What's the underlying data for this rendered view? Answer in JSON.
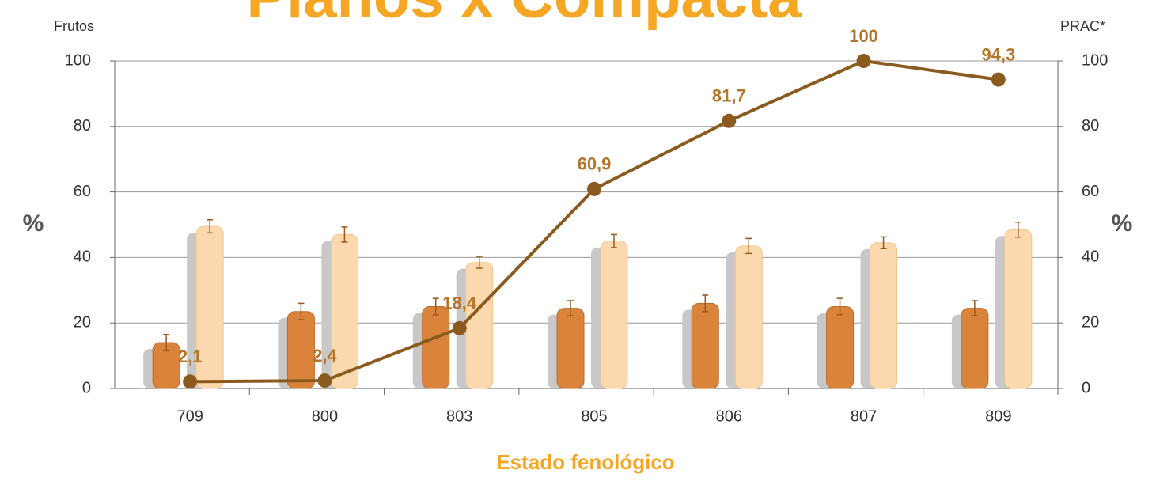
{
  "chart_data": {
    "type": "bar-line",
    "title": "Planos x Compacta",
    "y_label_top": "Frutos",
    "y2_label_top": "PRAC*",
    "y_label": "%",
    "y2_label": "%",
    "x_label": "Estado fenológico",
    "categories": [
      "709",
      "800",
      "803",
      "805",
      "806",
      "807",
      "809"
    ],
    "series": [
      {
        "color": "#d9843a",
        "values": [
          14,
          23.5,
          25,
          24.5,
          26,
          25,
          24.5
        ],
        "errors": [
          2.5,
          2.5,
          2.5,
          2.3,
          2.5,
          2.5,
          2.3
        ]
      },
      {
        "color": "#fbd8ae",
        "values": [
          49.5,
          47,
          38.5,
          45,
          43.5,
          44.5,
          48.5
        ],
        "errors": [
          2,
          2.3,
          1.8,
          2,
          2.3,
          1.8,
          2.3
        ]
      },
      {
        "color": "#8b5a1e",
        "axis": "y2",
        "values": [
          2.1,
          2.4,
          18.4,
          60.9,
          81.7,
          100,
          94.3
        ],
        "value_labels": [
          "2,1",
          "2,4",
          "18,4",
          "60,9",
          "81,7",
          "100",
          "94,3"
        ]
      }
    ],
    "ylim": [
      0,
      100
    ],
    "yticks": [
      0,
      20,
      40,
      60,
      80,
      100
    ],
    "y2lim": [
      0,
      100
    ],
    "y2ticks": [
      0,
      20,
      40,
      60,
      80,
      100
    ],
    "grid": true
  }
}
